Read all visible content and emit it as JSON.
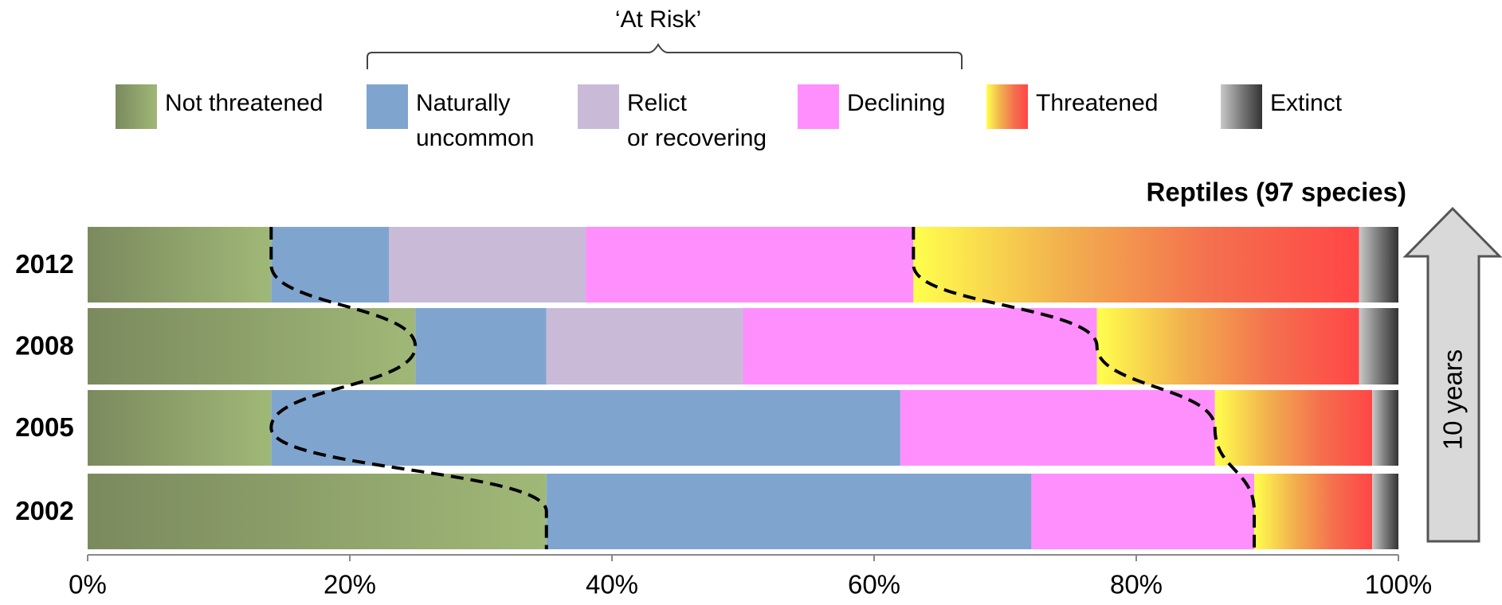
{
  "chart_data": {
    "type": "stacked-barh",
    "title": "Reptiles (97 species)",
    "annotations": {
      "bracket": "‘At Risk’",
      "arrow": "10 years"
    },
    "categories": [
      "2012",
      "2008",
      "2005",
      "2002"
    ],
    "series": [
      {
        "name": "Not threatened",
        "color": [
          "#7b8a5e",
          "#a0b877"
        ],
        "values": [
          14,
          25,
          14,
          35
        ]
      },
      {
        "name": "Naturally\nuncommon",
        "color": "#7fa5cf",
        "values": [
          9,
          10,
          48,
          37
        ]
      },
      {
        "name": "Relict\nor recovering",
        "color": "#c9bbd8",
        "values": [
          15,
          15,
          0,
          0
        ]
      },
      {
        "name": "Declining",
        "color": "#ff8ffd",
        "values": [
          25,
          27,
          24,
          17
        ]
      },
      {
        "name": "Threatened",
        "color": [
          "#ffff4d",
          "#f2b14e",
          "#f4704e",
          "#ff4646"
        ],
        "values": [
          34,
          20,
          12,
          9
        ]
      },
      {
        "name": "Extinct",
        "color": [
          "#c8c8c8",
          "#7a7a7a",
          "#333333"
        ],
        "values": [
          3,
          3,
          2,
          2
        ]
      }
    ],
    "xlim": [
      0,
      100
    ],
    "xticks": [
      {
        "value": 0,
        "label": "0%"
      },
      {
        "value": 20,
        "label": "20%"
      },
      {
        "value": 40,
        "label": "40%"
      },
      {
        "value": 60,
        "label": "60%"
      },
      {
        "value": 80,
        "label": "80%"
      },
      {
        "value": 100,
        "label": "100%"
      }
    ]
  }
}
